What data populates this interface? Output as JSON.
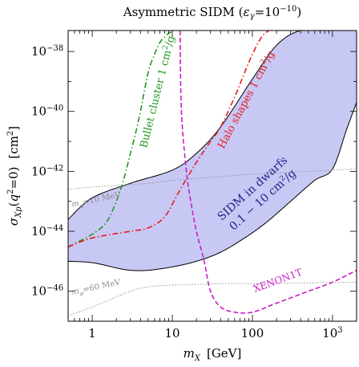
{
  "chart_data": {
    "type": "line",
    "title": "Asymmetric SIDM (ε_γ=10^−10)",
    "title_parts": {
      "main": "Asymmetric SIDM (",
      "eps": "ε",
      "eps_sub": "γ",
      "eq": "=10",
      "exp": "−10",
      "close": ")"
    },
    "xlabel_parts": {
      "var": "m",
      "sub": "X",
      "unit": "[GeV]"
    },
    "ylabel_parts": {
      "var": "σ",
      "sub": "Xp",
      "arg_open": "(",
      "q": "q",
      "q_exp": "2",
      "arg_close": "=0)",
      "unit": "[cm",
      "unit_exp": "2",
      "unit_close": "]"
    },
    "x_scale": "log",
    "y_scale": "log",
    "xlim": [
      0.5,
      2000
    ],
    "ylim": [
      1e-47,
      5e-38
    ],
    "x_ticks": [
      {
        "value": 1,
        "label": "1"
      },
      {
        "value": 10,
        "label": "10"
      },
      {
        "value": 100,
        "label": "100"
      },
      {
        "value": 1000,
        "label": "10",
        "exp": "3"
      }
    ],
    "y_ticks": [
      {
        "value": 1e-38,
        "label": "10",
        "exp": "−38"
      },
      {
        "value": 1e-40,
        "label": "10",
        "exp": "−40"
      },
      {
        "value": 1e-42,
        "label": "10",
        "exp": "−42"
      },
      {
        "value": 1e-44,
        "label": "10",
        "exp": "−44"
      },
      {
        "value": 1e-46,
        "label": "10",
        "exp": "−46"
      }
    ],
    "grid": false,
    "colors": {
      "band_fill": "#c8c8f5",
      "band_edge": "#000000",
      "bullet": "#1e9a1e",
      "halo": "#e61e1e",
      "xenon": "#c81ec8",
      "mphi": "#8c8c8c"
    },
    "band": {
      "name": "SIDM in dwarfs",
      "range_label": "0.1 − 10 cm²/g",
      "label_line1": "SIDM in dwarfs",
      "label_line2": "0.1 − 10 cm",
      "label_line2_exp": "2",
      "label_line2_tail": "/g",
      "upper": {
        "x": [
          0.5,
          1,
          3,
          10,
          20,
          40,
          100,
          200,
          400,
          1000,
          2000
        ],
        "y": [
          2.5e-44,
          1.3e-43,
          4e-43,
          1.1e-42,
          4e-42,
          3e-41,
          1.2e-39,
          1.6e-38,
          5e-38,
          5e-38,
          5e-38
        ]
      },
      "lower": {
        "x": [
          0.5,
          1,
          2,
          3,
          5,
          10,
          20,
          40,
          80,
          150,
          300,
          600,
          1000,
          1500,
          2000
        ],
        "y": [
          1e-45,
          9e-46,
          6e-46,
          5e-46,
          5e-46,
          6.5e-46,
          1e-45,
          2e-45,
          6e-45,
          2e-44,
          1e-43,
          5e-43,
          1.2e-42,
          2.5e-41,
          2e-40
        ]
      }
    },
    "series": [
      {
        "name": "Bullet cluster 1 cm²/g",
        "label_main": "Bullet cluster 1 cm",
        "label_exp": "2",
        "label_tail": "/g",
        "style": "dash-dot",
        "x": [
          0.5,
          1,
          1.5,
          2,
          2.5,
          3,
          3.5,
          4,
          5,
          6,
          7,
          8,
          9,
          10.5
        ],
        "y": [
          3e-45,
          8e-45,
          2e-44,
          1e-43,
          6e-43,
          4e-42,
          2e-41,
          1e-40,
          2e-39,
          8e-39,
          2e-38,
          3e-38,
          4e-38,
          5e-38
        ]
      },
      {
        "name": "Halo shapes 1 cm²/g",
        "label_main": "Halo shapes 1 cm",
        "label_exp": "2",
        "label_tail": "/g",
        "style": "dash-dot",
        "x": [
          0.5,
          1,
          3,
          5,
          8,
          12,
          20,
          30,
          40,
          60,
          80,
          100,
          130,
          160
        ],
        "y": [
          3e-45,
          6e-45,
          1e-44,
          1.3e-44,
          3e-44,
          2e-43,
          2e-42,
          1e-41,
          3e-41,
          3e-40,
          2e-39,
          8e-39,
          3e-38,
          5e-38
        ]
      },
      {
        "name": "XENON1T",
        "label_main": "XENON1T",
        "style": "dashed",
        "x": [
          12.5,
          13,
          15,
          17,
          20,
          25,
          30,
          40,
          60,
          100,
          200,
          500,
          1000,
          2000
        ],
        "y": [
          5e-38,
          1e-40,
          1e-42,
          1e-43,
          1e-44,
          1e-45,
          1e-46,
          3e-47,
          2e-47,
          2e-47,
          4e-47,
          1e-46,
          2e-46,
          5e-46
        ]
      },
      {
        "name": "m_φ=10 MeV",
        "label_main": "m",
        "label_sub": "φ",
        "label_tail": "=10 MeV",
        "style": "dotted",
        "x": [
          0.5,
          1,
          5,
          10,
          50,
          100,
          500,
          1000,
          2000
        ],
        "y": [
          2.5e-43,
          3e-43,
          4e-43,
          5e-43,
          7e-43,
          8e-43,
          1e-42,
          1.1e-42,
          1.2e-42
        ]
      },
      {
        "name": "m_φ=60 MeV",
        "label_main": "m",
        "label_sub": "φ",
        "label_tail": "=60 MeV",
        "style": "dotted",
        "x": [
          0.5,
          1,
          3,
          5,
          10,
          50,
          100,
          500,
          1000,
          2000
        ],
        "y": [
          1.5e-47,
          3e-47,
          1e-46,
          1.4e-46,
          1.6e-46,
          1.8e-46,
          1.8e-46,
          1.9e-46,
          2e-46,
          2e-46
        ]
      }
    ]
  }
}
